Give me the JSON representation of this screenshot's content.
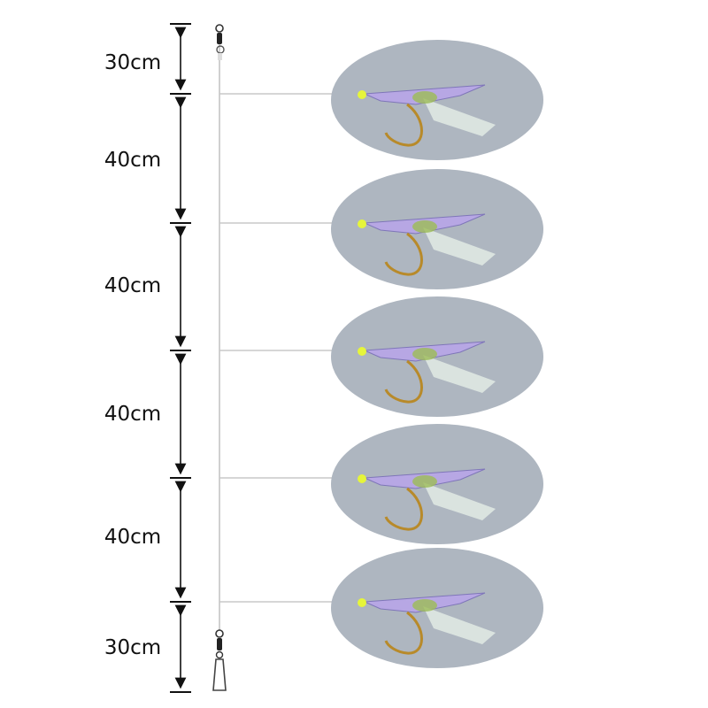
{
  "segments": [
    {
      "label": "30cm",
      "length_cm": 30
    },
    {
      "label": "40cm",
      "length_cm": 40
    },
    {
      "label": "40cm",
      "length_cm": 40
    },
    {
      "label": "40cm",
      "length_cm": 40
    },
    {
      "label": "40cm",
      "length_cm": 40
    },
    {
      "label": "30cm",
      "length_cm": 30
    }
  ],
  "lure_count": 5,
  "colors": {
    "background_oval": "#aeb6c0",
    "line": "#c8c8c8",
    "hook": "#b88a2a",
    "bead": "#e6f53a",
    "wing": "#b9a6e8",
    "text": "#111111"
  },
  "icons": [
    "swivel-top-icon",
    "snap-swivel-bottom-icon",
    "double-arrow-icon"
  ]
}
